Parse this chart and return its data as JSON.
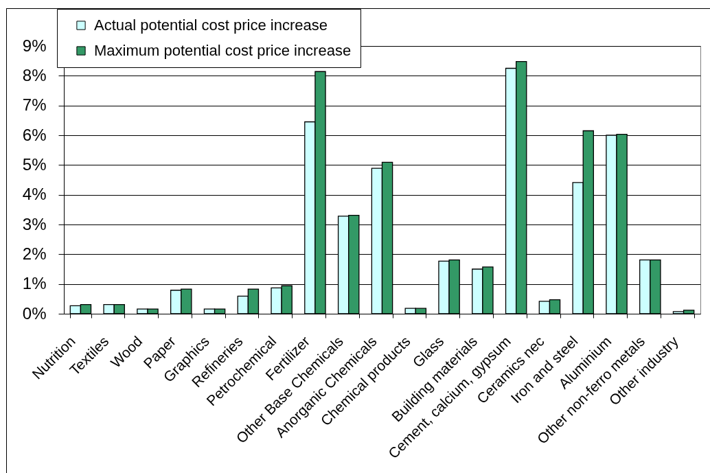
{
  "chart_data": {
    "type": "bar",
    "categories": [
      "Nutrition",
      "Textiles",
      "Wood",
      "Paper",
      "Graphics",
      "Refineries",
      "Petrochemical",
      "Fertilizer",
      "Other Base Chemicals",
      "Anorganic Chemicals",
      "Chemical products",
      "Glass",
      "Building materials",
      "Cement, calcium, gypsum",
      "Ceramics nec",
      "Iron and steel",
      "Aluminium",
      "Other non-ferro metals",
      "Other industry"
    ],
    "series": [
      {
        "name": "Actual potential cost price increase",
        "color": "#ccffff",
        "values": [
          0.27,
          0.31,
          0.16,
          0.79,
          0.16,
          0.59,
          0.87,
          6.45,
          3.28,
          4.89,
          0.18,
          1.77,
          1.5,
          8.25,
          0.42,
          4.41,
          6.0,
          1.81,
          0.07
        ]
      },
      {
        "name": "Maximum potential cost price increase",
        "color": "#339966",
        "values": [
          0.31,
          0.31,
          0.16,
          0.83,
          0.16,
          0.83,
          0.94,
          8.14,
          3.31,
          5.09,
          0.18,
          1.81,
          1.57,
          8.48,
          0.47,
          6.15,
          6.03,
          1.81,
          0.12
        ]
      }
    ],
    "ylim": [
      0,
      9
    ],
    "yticks": [
      {
        "value": 0,
        "label": "0%"
      },
      {
        "value": 1,
        "label": "1%"
      },
      {
        "value": 2,
        "label": "2%"
      },
      {
        "value": 3,
        "label": "3%"
      },
      {
        "value": 4,
        "label": "4%"
      },
      {
        "value": 5,
        "label": "5%"
      },
      {
        "value": 6,
        "label": "6%"
      },
      {
        "value": 7,
        "label": "7%"
      },
      {
        "value": 8,
        "label": "8%"
      },
      {
        "value": 9,
        "label": "9%"
      }
    ],
    "grid": "y",
    "legend": "top left"
  }
}
